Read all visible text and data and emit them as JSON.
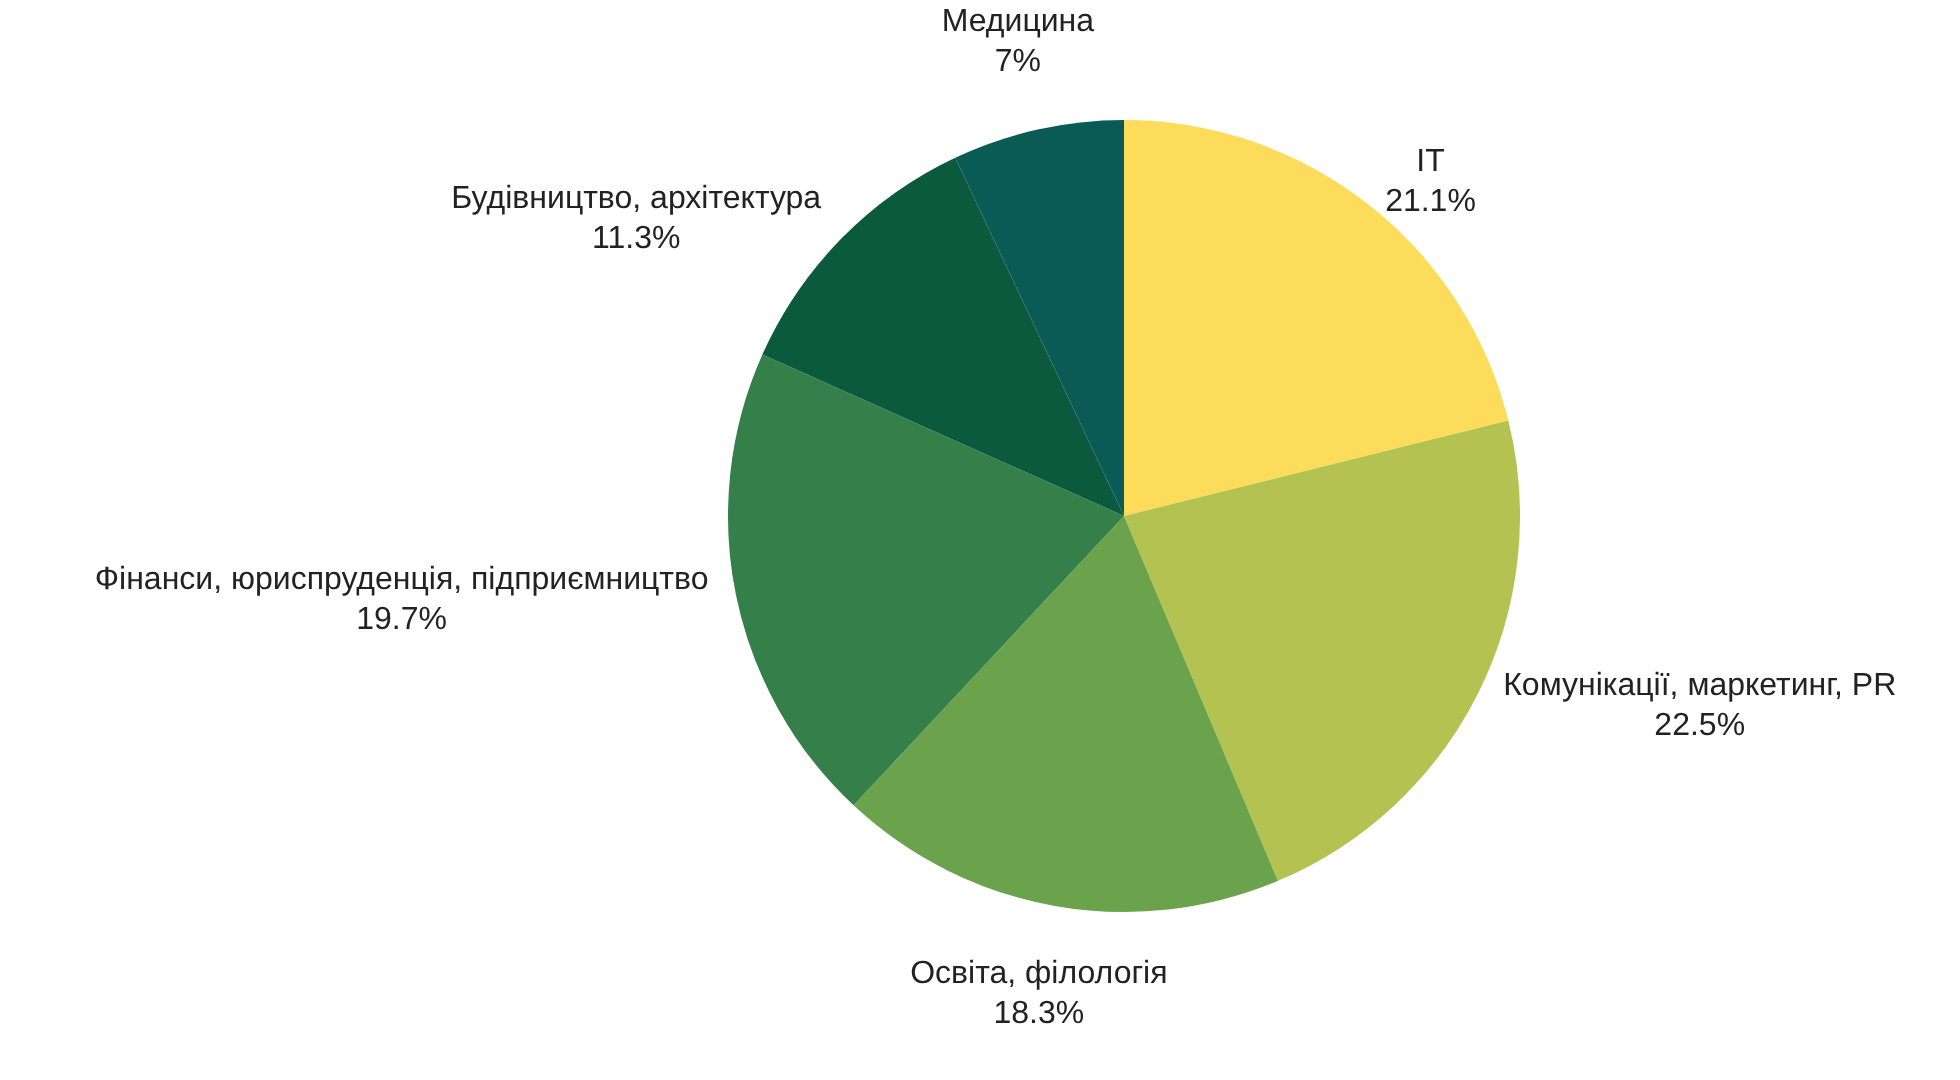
{
  "chart_data": {
    "type": "pie",
    "categories": [
      "IT",
      "Комунікації, маркетинг, PR",
      "Освіта, філологія",
      "Фінанси, юриспруденція, підприємництво",
      "Будівництво, архітектура",
      "Медицина"
    ],
    "values": [
      21.1,
      22.5,
      18.3,
      19.7,
      11.3,
      7
    ],
    "value_labels": [
      "21.1%",
      "22.5%",
      "18.3%",
      "19.7%",
      "11.3%",
      "7%"
    ],
    "colors": [
      "#fddc5c",
      "#b3c250",
      "#6aa34b",
      "#357f4b",
      "#0c5a3e",
      "#0a5b55"
    ],
    "legend": false
  }
}
